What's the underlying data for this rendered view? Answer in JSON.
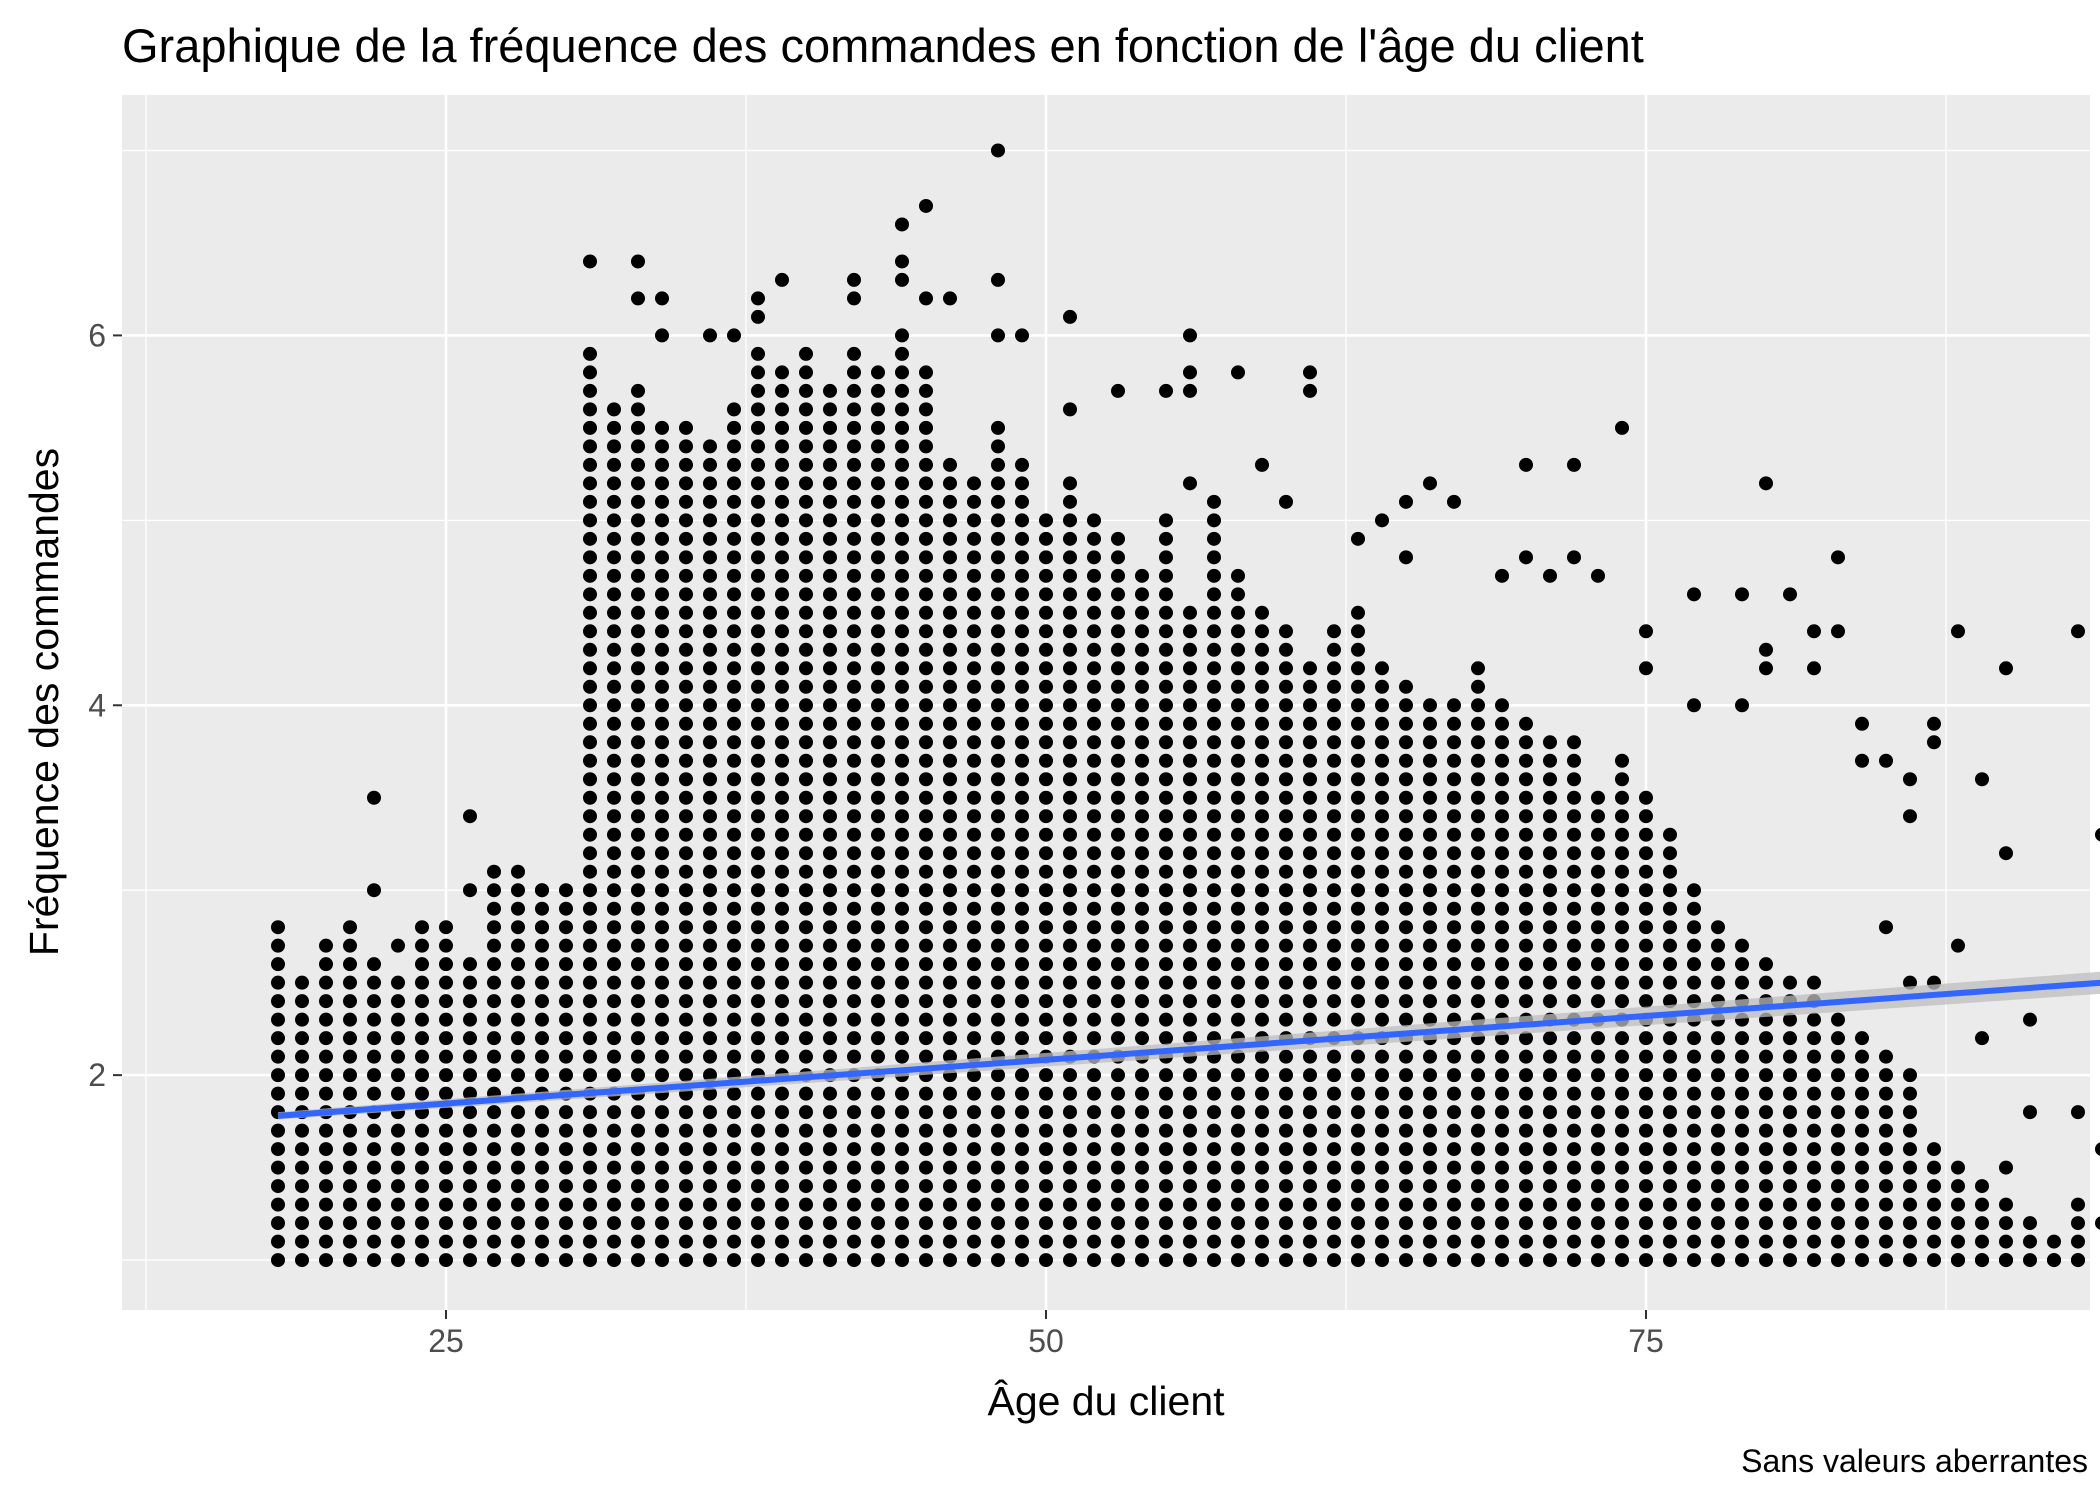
{
  "chart_data": {
    "type": "scatter",
    "title": "Graphique de la fréquence des commandes en fonction de l'âge du client",
    "xlabel": "Âge du client",
    "ylabel": "Fréquence des commandes",
    "caption": "Sans valeurs aberrantes",
    "xlim": [
      11.5,
      93.5
    ],
    "ylim": [
      0.73,
      7.3
    ],
    "x_ticks": [
      25,
      50,
      75
    ],
    "y_ticks": [
      2,
      4,
      6
    ],
    "grid": true,
    "legend": "none",
    "colors": {
      "panel": "#ebebeb",
      "grid": "#ffffff",
      "points": "#000000",
      "trend": "#3366ff",
      "ribbon": "#bdbdbd",
      "tick_text": "#4d4d4d"
    },
    "point_grid": {
      "description": "Dense band of points at each integer age; order frequency values are multiples of 0.1",
      "step": 0.1,
      "columns": [
        {
          "x": 18,
          "max": 2.8
        },
        {
          "x": 19,
          "max": 2.5
        },
        {
          "x": 20,
          "max": 2.7
        },
        {
          "x": 21,
          "max": 2.8
        },
        {
          "x": 22,
          "max": 2.6
        },
        {
          "x": 23,
          "max": 2.5
        },
        {
          "x": 24,
          "max": 2.7
        },
        {
          "x": 25,
          "max": 2.8
        },
        {
          "x": 26,
          "max": 2.6
        },
        {
          "x": 27,
          "max": 3.0
        },
        {
          "x": 28,
          "max": 3.1
        },
        {
          "x": 29,
          "max": 3.0
        },
        {
          "x": 30,
          "max": 3.0
        },
        {
          "x": 31,
          "max": 5.9
        },
        {
          "x": 32,
          "max": 5.6
        },
        {
          "x": 33,
          "max": 5.7
        },
        {
          "x": 34,
          "max": 5.5
        },
        {
          "x": 35,
          "max": 5.5
        },
        {
          "x": 36,
          "max": 5.4
        },
        {
          "x": 37,
          "max": 5.6
        },
        {
          "x": 38,
          "max": 5.9
        },
        {
          "x": 39,
          "max": 5.8
        },
        {
          "x": 40,
          "max": 5.9
        },
        {
          "x": 41,
          "max": 5.7
        },
        {
          "x": 42,
          "max": 5.9
        },
        {
          "x": 43,
          "max": 5.8
        },
        {
          "x": 44,
          "max": 5.9
        },
        {
          "x": 45,
          "max": 5.8
        },
        {
          "x": 46,
          "max": 5.3
        },
        {
          "x": 47,
          "max": 5.2
        },
        {
          "x": 48,
          "max": 5.5
        },
        {
          "x": 49,
          "max": 5.3
        },
        {
          "x": 50,
          "max": 5.0
        },
        {
          "x": 51,
          "max": 5.2
        },
        {
          "x": 52,
          "max": 5.0
        },
        {
          "x": 53,
          "max": 4.9
        },
        {
          "x": 54,
          "max": 4.7
        },
        {
          "x": 55,
          "max": 5.0
        },
        {
          "x": 56,
          "max": 4.5
        },
        {
          "x": 57,
          "max": 5.1
        },
        {
          "x": 58,
          "max": 4.7
        },
        {
          "x": 59,
          "max": 4.5
        },
        {
          "x": 60,
          "max": 4.4
        },
        {
          "x": 61,
          "max": 4.2
        },
        {
          "x": 62,
          "max": 4.4
        },
        {
          "x": 63,
          "max": 4.5
        },
        {
          "x": 64,
          "max": 4.2
        },
        {
          "x": 65,
          "max": 4.1
        },
        {
          "x": 66,
          "max": 4.0
        },
        {
          "x": 67,
          "max": 4.0
        },
        {
          "x": 68,
          "max": 4.2
        },
        {
          "x": 69,
          "max": 4.0
        },
        {
          "x": 70,
          "max": 3.9
        },
        {
          "x": 71,
          "max": 3.8
        },
        {
          "x": 72,
          "max": 3.8
        },
        {
          "x": 73,
          "max": 3.5
        },
        {
          "x": 74,
          "max": 3.7
        },
        {
          "x": 75,
          "max": 3.5
        },
        {
          "x": 76,
          "max": 3.3
        },
        {
          "x": 77,
          "max": 3.0
        },
        {
          "x": 78,
          "max": 2.8
        },
        {
          "x": 79,
          "max": 2.7
        },
        {
          "x": 80,
          "max": 2.6
        },
        {
          "x": 81,
          "max": 2.5
        },
        {
          "x": 82,
          "max": 2.5
        },
        {
          "x": 83,
          "max": 2.3
        },
        {
          "x": 84,
          "max": 2.2
        },
        {
          "x": 85,
          "max": 2.1
        },
        {
          "x": 86,
          "max": 2.0
        },
        {
          "x": 87,
          "max": 1.6
        },
        {
          "x": 88,
          "max": 1.5
        },
        {
          "x": 89,
          "max": 1.4
        },
        {
          "x": 90,
          "max": 1.3
        },
        {
          "x": 91,
          "max": 1.2
        },
        {
          "x": 92,
          "max": 1.1
        },
        {
          "x": 93,
          "max": 1.3
        }
      ]
    },
    "outliers": [
      [
        22,
        3.5
      ],
      [
        22,
        3.0
      ],
      [
        23,
        2.7
      ],
      [
        24,
        2.8
      ],
      [
        26,
        3.4
      ],
      [
        26,
        3.0
      ],
      [
        27,
        3.1
      ],
      [
        29,
        2.8
      ],
      [
        29,
        3.0
      ],
      [
        31,
        6.4
      ],
      [
        33,
        6.4
      ],
      [
        33,
        6.2
      ],
      [
        34,
        6.2
      ],
      [
        34,
        6.0
      ],
      [
        36,
        6.0
      ],
      [
        37,
        6.0
      ],
      [
        38,
        6.2
      ],
      [
        38,
        6.1
      ],
      [
        39,
        6.3
      ],
      [
        42,
        6.3
      ],
      [
        42,
        6.2
      ],
      [
        44,
        6.6
      ],
      [
        44,
        6.4
      ],
      [
        44,
        6.3
      ],
      [
        44,
        6.0
      ],
      [
        45,
        6.7
      ],
      [
        45,
        6.2
      ],
      [
        46,
        6.2
      ],
      [
        48,
        7.0
      ],
      [
        48,
        6.3
      ],
      [
        48,
        6.0
      ],
      [
        49,
        6.0
      ],
      [
        51,
        6.1
      ],
      [
        51,
        5.6
      ],
      [
        53,
        5.7
      ],
      [
        55,
        5.7
      ],
      [
        56,
        6.0
      ],
      [
        56,
        5.8
      ],
      [
        56,
        5.7
      ],
      [
        56,
        5.2
      ],
      [
        58,
        5.8
      ],
      [
        59,
        5.3
      ],
      [
        60,
        5.1
      ],
      [
        61,
        5.8
      ],
      [
        61,
        5.7
      ],
      [
        63,
        4.9
      ],
      [
        64,
        5.0
      ],
      [
        65,
        5.1
      ],
      [
        65,
        4.8
      ],
      [
        66,
        5.2
      ],
      [
        67,
        5.1
      ],
      [
        69,
        4.7
      ],
      [
        70,
        5.3
      ],
      [
        70,
        4.8
      ],
      [
        71,
        4.7
      ],
      [
        72,
        5.3
      ],
      [
        72,
        4.8
      ],
      [
        73,
        4.7
      ],
      [
        74,
        5.5
      ],
      [
        75,
        4.4
      ],
      [
        75,
        4.2
      ],
      [
        77,
        4.6
      ],
      [
        77,
        4.0
      ],
      [
        79,
        4.6
      ],
      [
        79,
        4.0
      ],
      [
        80,
        5.2
      ],
      [
        80,
        4.3
      ],
      [
        80,
        4.2
      ],
      [
        81,
        4.6
      ],
      [
        82,
        4.4
      ],
      [
        82,
        4.2
      ],
      [
        83,
        4.8
      ],
      [
        83,
        4.4
      ],
      [
        84,
        3.9
      ],
      [
        84,
        3.7
      ],
      [
        85,
        3.7
      ],
      [
        86,
        3.6
      ],
      [
        86,
        3.4
      ],
      [
        87,
        3.9
      ],
      [
        87,
        3.8
      ],
      [
        88,
        4.4
      ],
      [
        89,
        3.6
      ],
      [
        90,
        4.2
      ],
      [
        91,
        2.3
      ],
      [
        93,
        4.4
      ],
      [
        94,
        3.3
      ],
      [
        94,
        1.6
      ],
      [
        94,
        1.2
      ],
      [
        92,
        1.0
      ],
      [
        93,
        1.0
      ],
      [
        90,
        1.0
      ],
      [
        89,
        1.0
      ],
      [
        88,
        1.0
      ],
      [
        93,
        1.8
      ],
      [
        91,
        1.8
      ],
      [
        90,
        1.5
      ],
      [
        89,
        2.2
      ],
      [
        90,
        3.2
      ],
      [
        88,
        2.7
      ],
      [
        87,
        2.5
      ],
      [
        86,
        2.5
      ],
      [
        85,
        2.8
      ]
    ],
    "trend_line": {
      "method": "linear",
      "x": [
        18,
        94
      ],
      "y": [
        1.78,
        2.5
      ],
      "ribbon_halfwidth": [
        0.02,
        0.06
      ]
    }
  }
}
